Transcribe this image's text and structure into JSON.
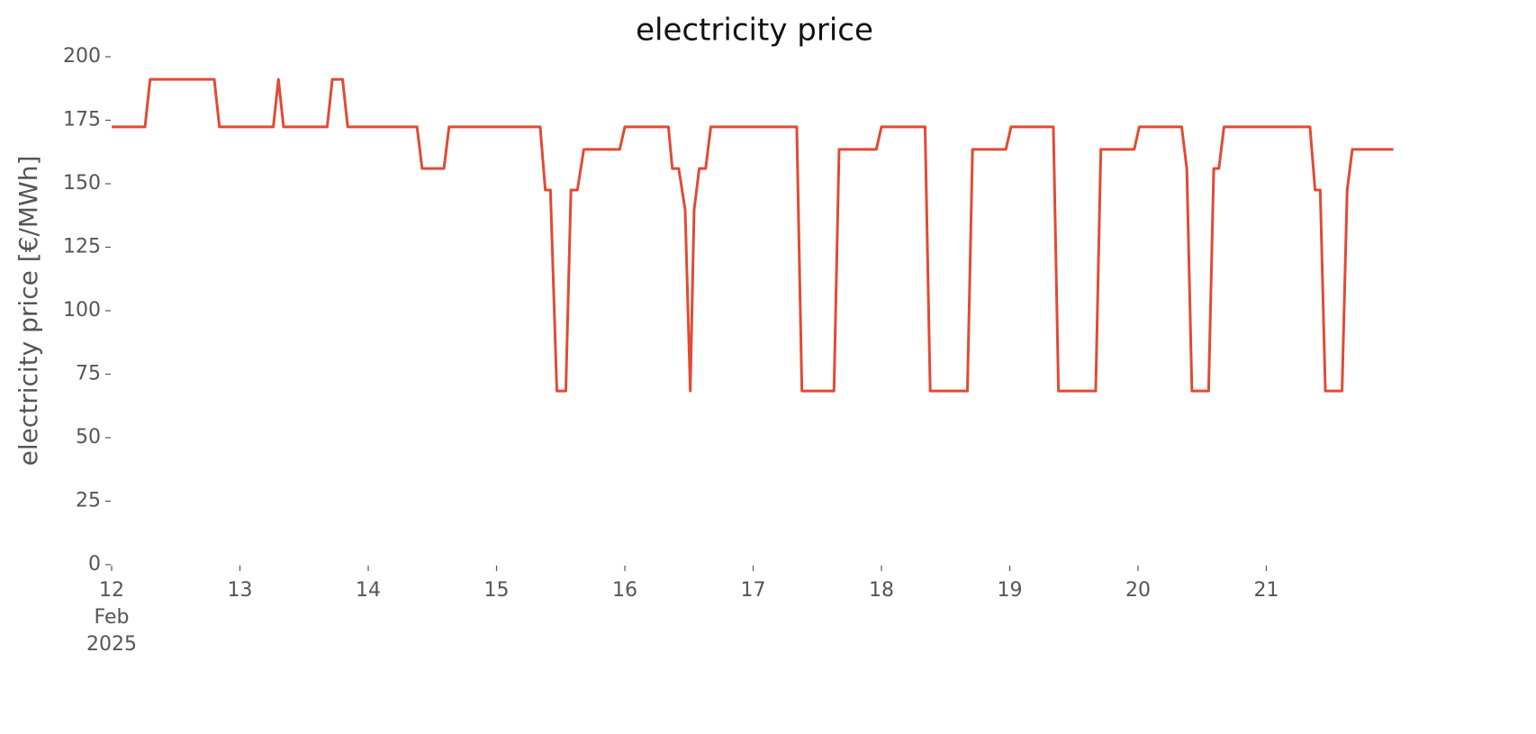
{
  "chart_data": {
    "type": "line",
    "title": "electricity price",
    "y_label": "electricity price [€/MWh]",
    "x": [
      12.0,
      12.26,
      12.3,
      12.8,
      12.84,
      13.26,
      13.3,
      13.34,
      13.68,
      13.72,
      13.8,
      13.84,
      14.38,
      14.42,
      14.59,
      14.63,
      15.34,
      15.38,
      15.42,
      15.47,
      15.54,
      15.58,
      15.63,
      15.68,
      15.96,
      16.0,
      16.34,
      16.37,
      16.42,
      16.47,
      16.51,
      16.54,
      16.58,
      16.63,
      16.67,
      17.34,
      17.38,
      17.63,
      17.67,
      17.96,
      18.0,
      18.34,
      18.38,
      18.67,
      18.71,
      18.97,
      19.01,
      19.34,
      19.38,
      19.67,
      19.71,
      19.97,
      20.01,
      20.34,
      20.38,
      20.42,
      20.55,
      20.59,
      20.63,
      20.67,
      21.34,
      21.38,
      21.42,
      21.46,
      21.59,
      21.63,
      21.67,
      21.99
    ],
    "series": [
      {
        "name": "electricity price",
        "color": "#e24a33",
        "values": [
          172.4,
          172.4,
          191.1,
          191.1,
          172.4,
          172.4,
          191.1,
          172.4,
          172.4,
          191.1,
          191.1,
          172.4,
          172.4,
          156,
          156,
          172.4,
          172.4,
          147.5,
          147.5,
          68.4,
          68.4,
          147.5,
          147.5,
          163.5,
          163.5,
          172.4,
          172.4,
          156,
          156,
          139.7,
          68.4,
          139.7,
          156,
          156,
          172.4,
          172.4,
          68.4,
          68.4,
          163.5,
          163.5,
          172.4,
          172.4,
          68.4,
          68.4,
          163.5,
          163.5,
          172.4,
          172.4,
          68.4,
          68.4,
          163.5,
          163.5,
          172.4,
          172.4,
          156,
          68.4,
          68.4,
          156,
          156,
          172.4,
          172.4,
          147.5,
          147.5,
          68.4,
          68.4,
          147.5,
          163.5,
          163.5
        ]
      }
    ],
    "xlim": [
      12,
      22
    ],
    "xticks": [
      {
        "value": 12,
        "label": "12\nFeb\n2025"
      },
      {
        "value": 13,
        "label": "13"
      },
      {
        "value": 14,
        "label": "14"
      },
      {
        "value": 15,
        "label": "15"
      },
      {
        "value": 16,
        "label": "16"
      },
      {
        "value": 17,
        "label": "17"
      },
      {
        "value": 18,
        "label": "18"
      },
      {
        "value": 19,
        "label": "19"
      },
      {
        "value": 20,
        "label": "20"
      },
      {
        "value": 21,
        "label": "21"
      }
    ],
    "ylim": [
      0,
      200
    ],
    "yticks": [
      0,
      25,
      50,
      75,
      100,
      125,
      150,
      175,
      200
    ],
    "grid": false
  }
}
